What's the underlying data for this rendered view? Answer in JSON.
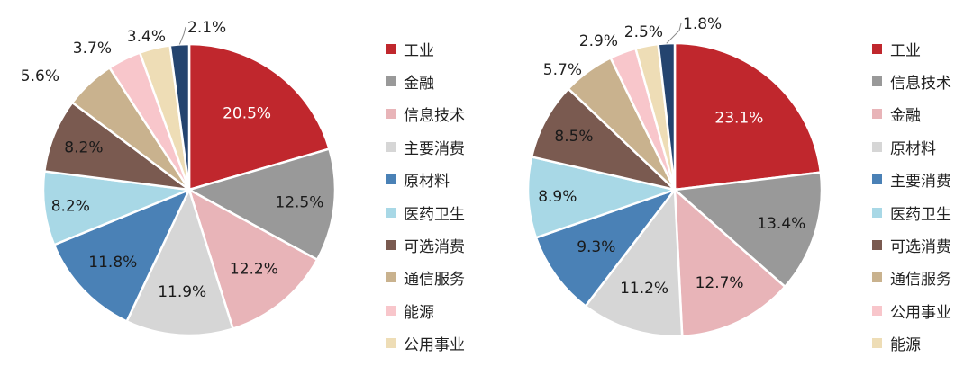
{
  "chart_data": [
    {
      "type": "pie",
      "labels": [
        "工业",
        "金融",
        "信息技术",
        "主要消费",
        "原材料",
        "医药卫生",
        "可选消费",
        "通信服务",
        "能源",
        "公用事业"
      ],
      "values": [
        20.5,
        12.5,
        12.2,
        11.9,
        11.8,
        8.2,
        8.2,
        5.6,
        3.7,
        3.4
      ],
      "value_labels": [
        "20.5%",
        "12.5%",
        "12.2%",
        "11.9%",
        "11.8%",
        "8.2%",
        "8.2%",
        "5.6%",
        "3.7%",
        "3.4%"
      ],
      "colors": [
        "#c0272d",
        "#999999",
        "#e8b4b8",
        "#d6d6d6",
        "#4a81b6",
        "#a8d8e6",
        "#7a5a50",
        "#c9b28e",
        "#f8c6cb",
        "#eeddb6"
      ],
      "other": {
        "value": 2.1,
        "label": "2.1%",
        "color": "#24446f"
      },
      "legend": "right"
    },
    {
      "type": "pie",
      "labels": [
        "工业",
        "信息技术",
        "金融",
        "原材料",
        "主要消费",
        "医药卫生",
        "可选消费",
        "通信服务",
        "公用事业",
        "能源"
      ],
      "values": [
        23.1,
        13.4,
        12.7,
        11.2,
        9.3,
        8.9,
        8.5,
        5.7,
        2.9,
        2.5
      ],
      "value_labels": [
        "23.1%",
        "13.4%",
        "12.7%",
        "11.2%",
        "9.3%",
        "8.9%",
        "8.5%",
        "5.7%",
        "2.9%",
        "2.5%"
      ],
      "colors": [
        "#c0272d",
        "#999999",
        "#e8b4b8",
        "#d6d6d6",
        "#4a81b6",
        "#a8d8e6",
        "#7a5a50",
        "#c9b28e",
        "#f8c6cb",
        "#eeddb6"
      ],
      "other": {
        "value": 1.8,
        "label": "1.8%",
        "color": "#24446f"
      },
      "legend": "right"
    }
  ]
}
